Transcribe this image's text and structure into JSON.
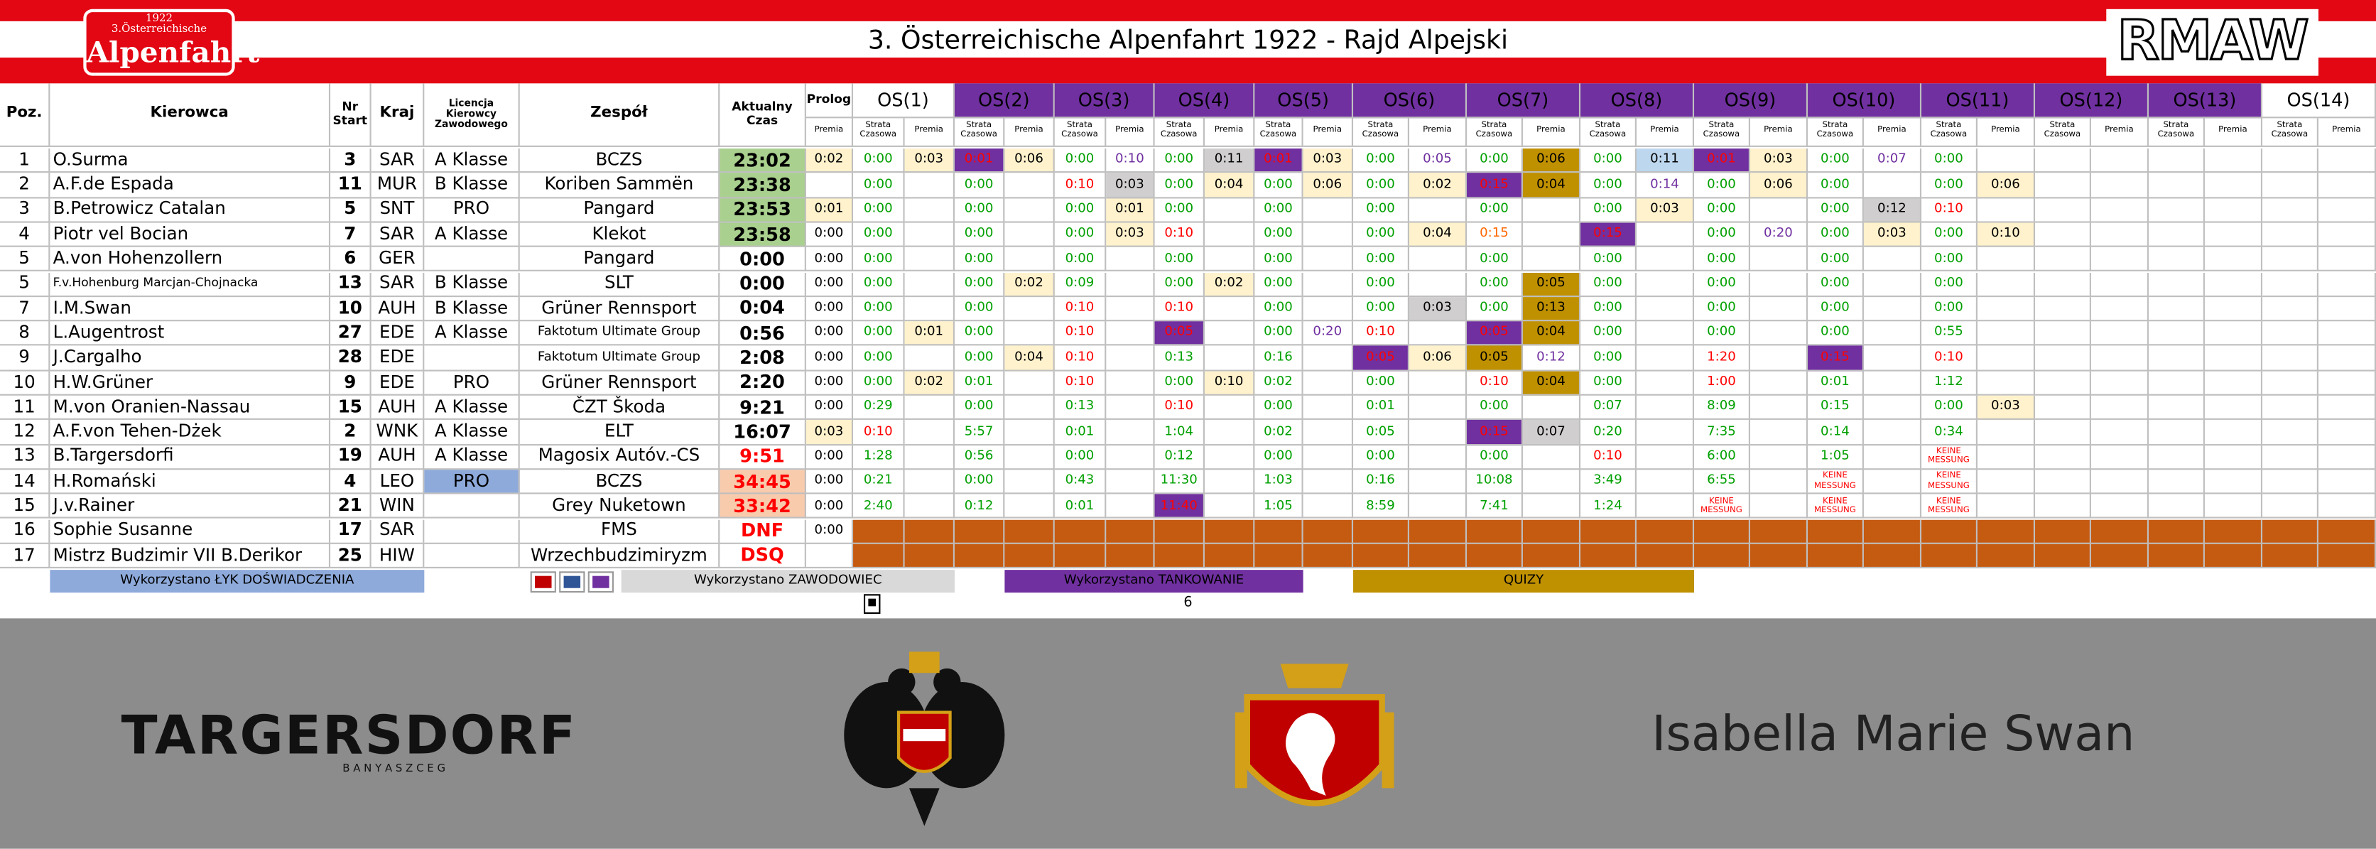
{
  "header": {
    "logo_year": "1922",
    "logo_subtitle": "3.Österreichische",
    "logo_title": "Alpenfahrt",
    "title": "3. Österreichische Alpenfahrt 1922 - Rajd Alpejski",
    "brand": "RMAW"
  },
  "table": {
    "headers": [
      "Poz.",
      "Kierowca",
      "Nr Start",
      "Kraj",
      "Licencja Kierowcy Zawodowego",
      "Zespół",
      "Aktualny Czas",
      "Prolog"
    ],
    "prolog_sub": "Premia",
    "stages": [
      "OS(1)",
      "OS(2)",
      "OS(3)",
      "OS(4)",
      "OS(5)",
      "OS(6)",
      "OS(7)",
      "OS(8)",
      "OS(9)",
      "OS(10)",
      "OS(11)",
      "OS(12)",
      "OS(13)",
      "OS(14)"
    ],
    "stage_sub": [
      "Strata Czasowa",
      "Premia"
    ],
    "rows": [
      [
        1,
        "O.Surma",
        3,
        "SAR",
        "A Klasse",
        "BCZS",
        "23:02",
        "0:02",
        "0:00",
        "0:03",
        "0:01",
        "0:06",
        "0:00",
        "0:10",
        "0:00",
        "0:11",
        "0:01",
        "0:03",
        "0:00",
        "0:05",
        "0:00",
        "0:06",
        "0:00",
        "0:11",
        "0:01",
        "0:03",
        "0:00",
        "0:07",
        "0:00",
        null,
        null,
        null,
        null,
        null,
        null,
        null
      ],
      [
        2,
        "A.F.de Espada",
        11,
        "MUR",
        "B Klasse",
        "Koriben Sammën",
        "23:38",
        null,
        "0:00",
        null,
        "0:00",
        null,
        "0:10",
        "0:03",
        "0:00",
        "0:04",
        "0:00",
        "0:06",
        "0:00",
        "0:02",
        "0:15",
        "0:04",
        "0:00",
        "0:14",
        "0:00",
        "0:06",
        "0:00",
        null,
        "0:00",
        "0:06",
        null,
        null,
        null,
        null,
        null,
        null
      ],
      [
        3,
        "B.Petrowicz Catalan",
        5,
        "SNT",
        "PRO",
        "Pangard",
        "23:53",
        "0:01",
        "0:00",
        null,
        "0:00",
        null,
        "0:00",
        "0:01",
        "0:00",
        null,
        "0:00",
        null,
        "0:00",
        null,
        "0:00",
        null,
        "0:00",
        "0:03",
        "0:00",
        null,
        "0:00",
        "0:12",
        "0:10",
        null,
        null,
        null,
        null,
        null,
        null,
        null
      ],
      [
        4,
        "Piotr vel Bocian",
        7,
        "SAR",
        "A Klasse",
        "Klekot",
        "23:58",
        "0:00",
        "0:00",
        null,
        "0:00",
        null,
        "0:00",
        "0:03",
        "0:10",
        null,
        "0:00",
        null,
        "0:00",
        "0:04",
        "0:15",
        null,
        "0:15",
        null,
        "0:00",
        "0:20",
        "0:00",
        "0:03",
        "0:00",
        "0:10",
        null,
        null,
        null,
        null,
        null,
        null
      ],
      [
        5,
        "A.von Hohenzollern",
        6,
        "GER",
        null,
        "Pangard",
        "0:00",
        "0:00",
        "0:00",
        null,
        "0:00",
        null,
        "0:00",
        null,
        "0:00",
        null,
        "0:00",
        null,
        "0:00",
        null,
        "0:00",
        null,
        "0:00",
        null,
        "0:00",
        null,
        "0:00",
        null,
        "0:00",
        null,
        null,
        null,
        null,
        null,
        null,
        null
      ],
      [
        5,
        "F.v.Hohenburg Marcjan-Chojnacka",
        13,
        "SAR",
        "B Klasse",
        "SLT",
        "0:00",
        "0:00",
        "0:00",
        null,
        "0:00",
        "0:02",
        "0:09",
        null,
        "0:00",
        "0:02",
        "0:00",
        null,
        "0:00",
        null,
        "0:00",
        "0:05",
        "0:00",
        null,
        "0:00",
        null,
        "0:00",
        null,
        "0:00",
        null,
        null,
        null,
        null,
        null,
        null,
        null
      ],
      [
        7,
        "I.M.Swan",
        10,
        "AUH",
        "B Klasse",
        "Grüner Rennsport",
        "0:04",
        "0:00",
        "0:00",
        null,
        "0:00",
        null,
        "0:10",
        null,
        "0:10",
        null,
        "0:00",
        null,
        "0:00",
        "0:03",
        "0:00",
        "0:13",
        "0:00",
        null,
        "0:00",
        null,
        "0:00",
        null,
        "0:00",
        null,
        null,
        null,
        null,
        null,
        null,
        null
      ],
      [
        8,
        "L.Augentrost",
        27,
        "EDE",
        "A Klasse",
        "Faktotum Ultimate Group",
        "0:56",
        "0:00",
        "0:00",
        "0:01",
        "0:00",
        null,
        "0:10",
        null,
        "0:05",
        null,
        "0:00",
        "0:20",
        "0:10",
        null,
        "0:05",
        "0:04",
        "0:00",
        null,
        "0:00",
        null,
        "0:00",
        null,
        "0:55",
        null,
        null,
        null,
        null,
        null,
        null,
        null
      ],
      [
        9,
        "J.Cargalho",
        28,
        "EDE",
        null,
        "Faktotum Ultimate Group",
        "2:08",
        "0:00",
        "0:00",
        null,
        "0:00",
        "0:04",
        "0:10",
        null,
        "0:13",
        null,
        "0:16",
        null,
        "0:05",
        "0:06",
        "0:05",
        "0:12",
        "0:00",
        null,
        "1:20",
        null,
        "0:15",
        null,
        "0:10",
        null,
        null,
        null,
        null,
        null,
        null,
        null
      ],
      [
        10,
        "H.W.Grüner",
        9,
        "EDE",
        "PRO",
        "Grüner Rennsport",
        "2:20",
        "0:00",
        "0:00",
        "0:02",
        "0:01",
        null,
        "0:10",
        null,
        "0:00",
        "0:10",
        "0:02",
        null,
        "0:00",
        null,
        "0:10",
        "0:04",
        "0:00",
        null,
        "1:00",
        null,
        "0:01",
        null,
        "1:12",
        null,
        null,
        null,
        null,
        null,
        null,
        null
      ],
      [
        11,
        "M.von Oranien-Nassau",
        15,
        "AUH",
        "A Klasse",
        "ČZT Škoda",
        "9:21",
        "0:00",
        "0:29",
        null,
        "0:00",
        null,
        "0:13",
        null,
        "0:10",
        null,
        "0:00",
        null,
        "0:01",
        null,
        "0:00",
        null,
        "0:07",
        null,
        "8:09",
        null,
        "0:15",
        null,
        "0:00",
        "0:03",
        null,
        null,
        null,
        null,
        null,
        null
      ],
      [
        12,
        "A.F.von Tehen-Dżek",
        2,
        "WNK",
        "A Klasse",
        "ELT",
        "16:07",
        "0:03",
        "0:10",
        null,
        "5:57",
        null,
        "0:01",
        null,
        "1:04",
        null,
        "0:02",
        null,
        "0:05",
        null,
        "0:15",
        "0:07",
        "0:20",
        null,
        "7:35",
        null,
        "0:14",
        null,
        "0:34",
        null,
        null,
        null,
        null,
        null,
        null,
        null
      ],
      [
        13,
        "B.Targersdorfi",
        19,
        "AUH",
        "A Klasse",
        "Magosix Autóv.-CS",
        "9:51",
        "0:00",
        "1:28",
        null,
        "0:56",
        null,
        "0:00",
        null,
        "0:12",
        null,
        "0:00",
        null,
        "0:00",
        null,
        "0:00",
        null,
        "0:10",
        null,
        "6:00",
        null,
        "1:05",
        null,
        "KEINE MESSUNG",
        null,
        null,
        null,
        null,
        null,
        null,
        null
      ],
      [
        14,
        "H.Romański",
        4,
        "LEO",
        "PRO",
        "BCZS",
        "34:45",
        "0:00",
        "0:21",
        null,
        "0:00",
        null,
        "0:43",
        null,
        "11:30",
        null,
        "1:03",
        null,
        "0:16",
        null,
        "10:08",
        null,
        "3:49",
        null,
        "6:55",
        null,
        "KEINE MESSUNG",
        null,
        "KEINE MESSUNG",
        null,
        null,
        null,
        null,
        null,
        null,
        null
      ],
      [
        15,
        "J.v.Rainer",
        21,
        "WIN",
        null,
        "Grey Nuketown",
        "33:42",
        "0:00",
        "2:40",
        null,
        "0:12",
        null,
        "0:01",
        null,
        "11:40",
        null,
        "1:05",
        null,
        "8:59",
        null,
        "7:41",
        null,
        "1:24",
        null,
        "KEINE MESSUNG",
        null,
        "KEINE MESSUNG",
        null,
        "KEINE MESSUNG",
        null,
        null,
        null,
        null,
        null,
        null,
        null
      ],
      [
        16,
        "Sophie Susanne",
        17,
        "SAR",
        null,
        "FMS",
        "DNF",
        "0:00",
        null,
        null,
        null,
        null,
        null,
        null,
        null,
        null,
        null,
        null,
        null,
        null,
        null,
        null,
        null,
        null,
        null,
        null,
        null,
        null,
        null,
        null,
        null,
        null,
        null,
        null,
        null,
        null
      ],
      [
        17,
        "Mistrz Budzimir VII B.Derikor",
        25,
        "HIW",
        null,
        "Wrzechbudzimiryzm",
        "DSQ",
        null,
        null,
        null,
        null,
        null,
        null,
        null,
        null,
        null,
        null,
        null,
        null,
        null,
        null,
        null,
        null,
        null,
        null,
        null,
        null,
        null,
        null,
        null,
        null,
        null,
        null,
        null,
        null,
        null
      ]
    ]
  },
  "legend": [
    "Wykorzystano ŁYK DOŚWIADCZENIA",
    "Wykorzystano ZAWODOWIEC",
    "Wykorzystano TANKOWANIE",
    "QUIZY"
  ],
  "page_number": 6,
  "footer": {
    "sponsor": "TARGERSDORF",
    "sponsor_tagline": "B A N Y A S Z C E G",
    "name": "Isabella Marie Swan"
  }
}
